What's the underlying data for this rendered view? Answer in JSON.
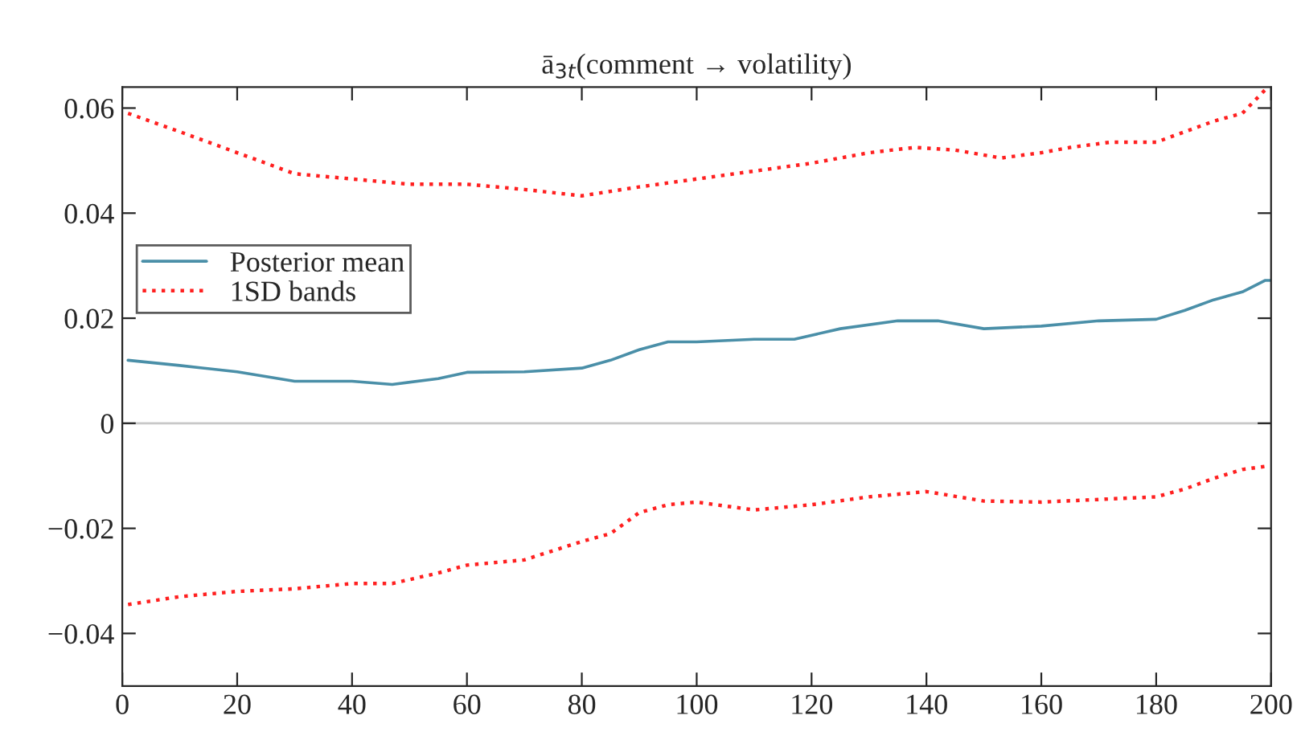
{
  "chart_data": {
    "type": "line",
    "title": "ā$_{3t}$(comment → volatility)",
    "xlim": [
      0,
      200
    ],
    "xticks": [
      0,
      20,
      40,
      60,
      80,
      100,
      120,
      140,
      160,
      180,
      200
    ],
    "ylim": [
      -0.05,
      0.064
    ],
    "yticks": [
      {
        "value": -0.04,
        "label": "−0.04"
      },
      {
        "value": -0.02,
        "label": "−0.02"
      },
      0,
      0.02,
      0.04,
      0.06
    ],
    "legend": "top left",
    "grid": false,
    "ref_lines": [
      {
        "axis": "y",
        "value": 0,
        "color": "#c8c8c8"
      }
    ],
    "series": [
      {
        "name": "Posterior mean",
        "color": "#4a8fa8",
        "line_style": "solid",
        "x": [
          1,
          10,
          20,
          30,
          40,
          47,
          55,
          60,
          70,
          80,
          85,
          90,
          95,
          100,
          110,
          117,
          125,
          135,
          142,
          150,
          160,
          170,
          180,
          185,
          190,
          195,
          199,
          200
        ],
        "values": [
          0.012,
          0.011,
          0.0098,
          0.008,
          0.008,
          0.0074,
          0.0085,
          0.0097,
          0.0098,
          0.0105,
          0.012,
          0.014,
          0.0155,
          0.0155,
          0.016,
          0.016,
          0.018,
          0.0195,
          0.0195,
          0.018,
          0.0185,
          0.0195,
          0.0198,
          0.0215,
          0.0235,
          0.025,
          0.0272,
          0.0272
        ]
      },
      {
        "name": "1SD bands",
        "color": "#ff2020",
        "line_style": "dotted",
        "x": [
          1,
          10,
          20,
          30,
          40,
          50,
          60,
          70,
          80,
          90,
          100,
          110,
          120,
          130,
          138,
          145,
          153,
          160,
          165,
          172,
          180,
          185,
          190,
          195,
          199
        ],
        "values": [
          0.059,
          0.0555,
          0.0515,
          0.0475,
          0.0465,
          0.0455,
          0.0455,
          0.0445,
          0.0433,
          0.045,
          0.0465,
          0.048,
          0.0495,
          0.0515,
          0.0525,
          0.052,
          0.0505,
          0.0515,
          0.0525,
          0.0535,
          0.0535,
          0.0555,
          0.0575,
          0.059,
          0.0635
        ]
      },
      {
        "color": "#ff2020",
        "line_style": "dotted",
        "x": [
          1,
          10,
          20,
          30,
          40,
          47,
          55,
          60,
          70,
          80,
          85,
          90,
          95,
          100,
          110,
          120,
          130,
          140,
          150,
          160,
          170,
          180,
          185,
          190,
          195,
          199
        ],
        "values": [
          -0.0345,
          -0.033,
          -0.032,
          -0.0315,
          -0.0305,
          -0.0305,
          -0.0285,
          -0.027,
          -0.026,
          -0.0225,
          -0.021,
          -0.017,
          -0.0155,
          -0.015,
          -0.0165,
          -0.0155,
          -0.014,
          -0.013,
          -0.0148,
          -0.015,
          -0.0145,
          -0.014,
          -0.0125,
          -0.0105,
          -0.0088,
          -0.0082
        ]
      }
    ]
  }
}
